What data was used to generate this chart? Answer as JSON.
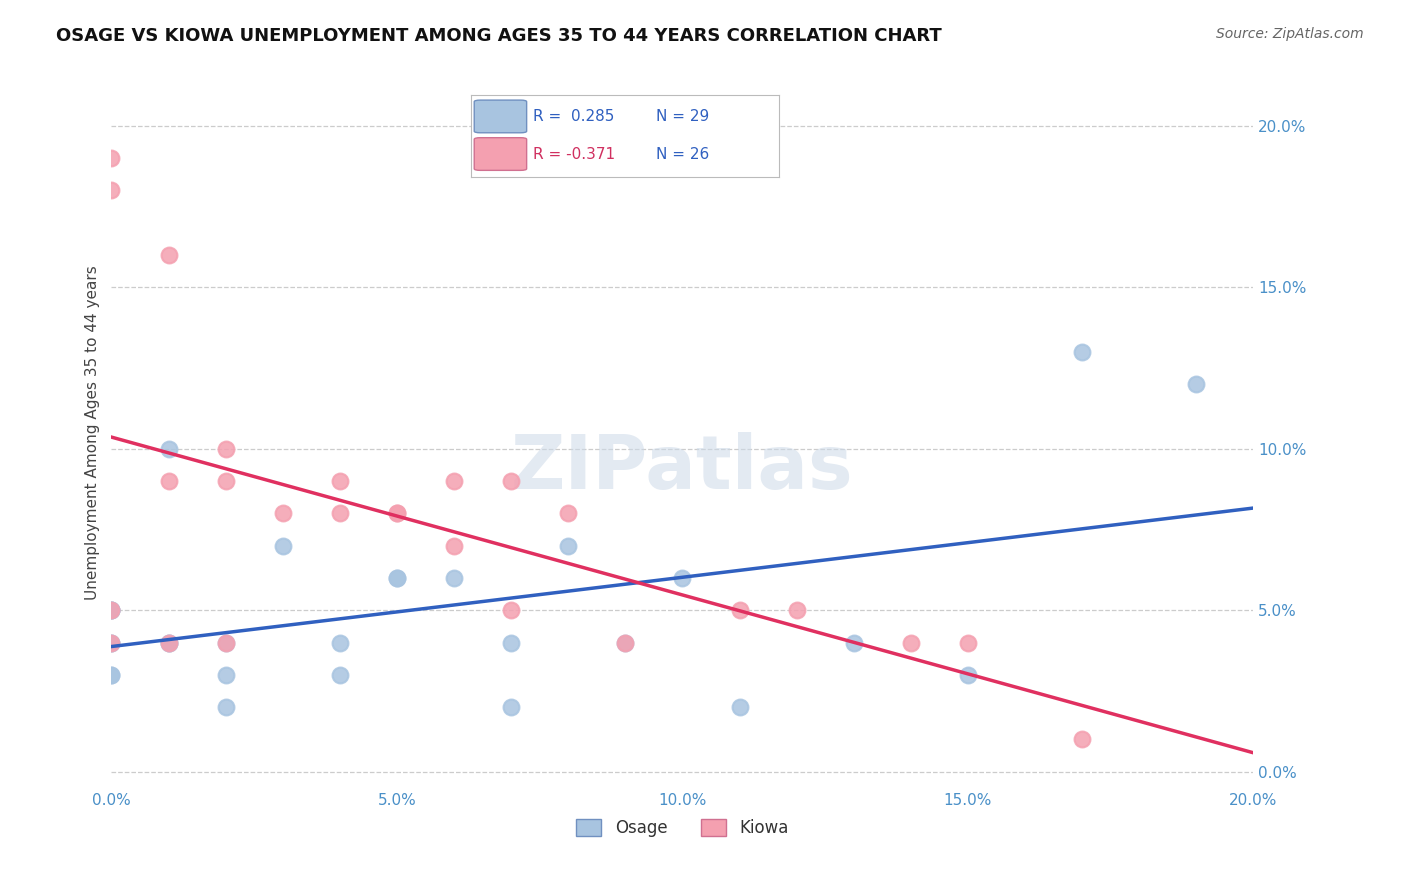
{
  "title": "OSAGE VS KIOWA UNEMPLOYMENT AMONG AGES 35 TO 44 YEARS CORRELATION CHART",
  "source": "Source: ZipAtlas.com",
  "ylabel": "Unemployment Among Ages 35 to 44 years",
  "xlim": [
    0.0,
    0.2
  ],
  "ylim": [
    -0.005,
    0.215
  ],
  "xticks": [
    0.0,
    0.05,
    0.1,
    0.15,
    0.2
  ],
  "yticks": [
    0.0,
    0.05,
    0.1,
    0.15,
    0.2
  ],
  "osage_color": "#a8c4e0",
  "kiowa_color": "#f4a0b0",
  "osage_line_color": "#3060c0",
  "kiowa_line_color": "#e03060",
  "osage_R": 0.285,
  "osage_N": 29,
  "kiowa_R": -0.371,
  "kiowa_N": 26,
  "osage_x": [
    0.0,
    0.0,
    0.0,
    0.0,
    0.0,
    0.0,
    0.0,
    0.01,
    0.01,
    0.01,
    0.02,
    0.02,
    0.02,
    0.03,
    0.04,
    0.04,
    0.05,
    0.05,
    0.06,
    0.07,
    0.07,
    0.08,
    0.09,
    0.1,
    0.11,
    0.13,
    0.15,
    0.17,
    0.19
  ],
  "osage_y": [
    0.05,
    0.04,
    0.04,
    0.03,
    0.03,
    0.05,
    0.05,
    0.1,
    0.04,
    0.04,
    0.04,
    0.03,
    0.02,
    0.07,
    0.04,
    0.03,
    0.06,
    0.06,
    0.06,
    0.04,
    0.02,
    0.07,
    0.04,
    0.06,
    0.02,
    0.04,
    0.03,
    0.13,
    0.12
  ],
  "kiowa_x": [
    0.0,
    0.0,
    0.0,
    0.0,
    0.01,
    0.01,
    0.01,
    0.02,
    0.02,
    0.02,
    0.03,
    0.04,
    0.04,
    0.05,
    0.05,
    0.06,
    0.06,
    0.07,
    0.07,
    0.08,
    0.09,
    0.11,
    0.12,
    0.14,
    0.15,
    0.17
  ],
  "kiowa_y": [
    0.19,
    0.18,
    0.05,
    0.04,
    0.16,
    0.09,
    0.04,
    0.1,
    0.09,
    0.04,
    0.08,
    0.09,
    0.08,
    0.08,
    0.08,
    0.07,
    0.09,
    0.05,
    0.09,
    0.08,
    0.04,
    0.05,
    0.05,
    0.04,
    0.04,
    0.01
  ]
}
